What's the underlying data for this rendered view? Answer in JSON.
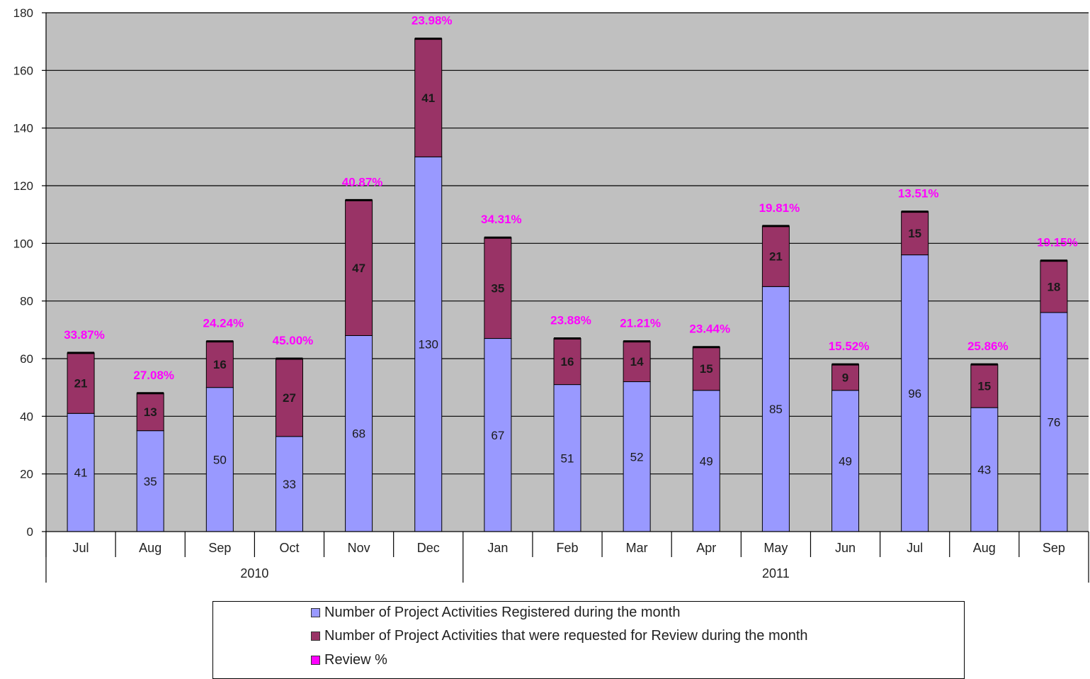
{
  "chart_data": {
    "type": "bar",
    "stacked": true,
    "categories": [
      "Jul",
      "Aug",
      "Sep",
      "Oct",
      "Nov",
      "Dec",
      "Jan",
      "Feb",
      "Mar",
      "Apr",
      "May",
      "Jun",
      "Jul",
      "Aug",
      "Sep"
    ],
    "groups": [
      {
        "label": "2010",
        "count": 6
      },
      {
        "label": "2011",
        "count": 9
      }
    ],
    "series": [
      {
        "name": "Number of Project Activities Registered during the month",
        "color": "#9999ff",
        "values": [
          41,
          35,
          50,
          33,
          68,
          130,
          67,
          51,
          52,
          49,
          85,
          49,
          96,
          43,
          76
        ]
      },
      {
        "name": "Number of Project Activities that were requested for Review during the month",
        "color": "#993366",
        "values": [
          21,
          13,
          16,
          27,
          47,
          41,
          35,
          16,
          14,
          15,
          21,
          9,
          15,
          15,
          18
        ]
      }
    ],
    "review_pct": {
      "name": "Review %",
      "color": "#ff00ff",
      "values": [
        "33.87%",
        "27.08%",
        "24.24%",
        "45.00%",
        "40.87%",
        "23.98%",
        "34.31%",
        "23.88%",
        "21.21%",
        "23.44%",
        "19.81%",
        "15.52%",
        "13.51%",
        "25.86%",
        "19.15%"
      ]
    },
    "ylim": [
      0,
      180
    ],
    "yticks": [
      0,
      20,
      40,
      60,
      80,
      100,
      120,
      140,
      160,
      180
    ],
    "plot_background": "#c0c0c0",
    "grid": true,
    "legend_position": "bottom"
  }
}
